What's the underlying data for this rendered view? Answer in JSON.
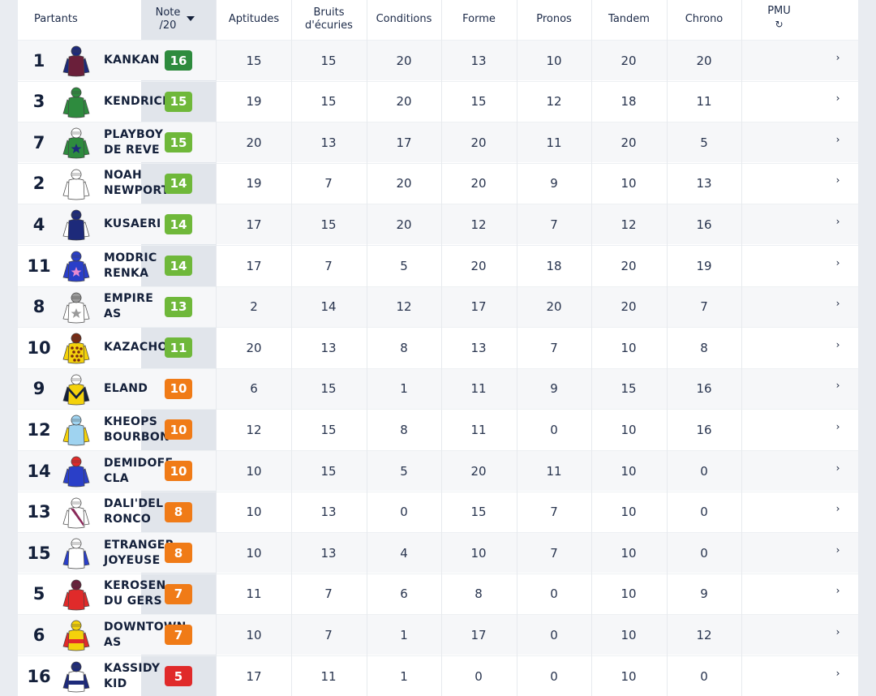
{
  "header": {
    "partants": "Partants",
    "note_line1": "Note",
    "note_line2": "/20",
    "aptitudes": "Aptitudes",
    "bruits_line1": "Bruits",
    "bruits_line2": "d'écuries",
    "conditions": "Conditions",
    "forme": "Forme",
    "pronos": "Pronos",
    "tandem": "Tandem",
    "chrono": "Chrono",
    "pmu": "PMU",
    "refresh_icon": "↻",
    "sort_icon": "caret-down-icon"
  },
  "colors": {
    "dark_green": "#2e8b3e",
    "green": "#6fb83a",
    "orange": "#f07b17",
    "red": "#e02a2a"
  },
  "rows": [
    {
      "num": "1",
      "name1": "KANKAN",
      "name2": "",
      "note": "16",
      "note_level": "dark_green",
      "aptitudes": "15",
      "bruits": "15",
      "conditions": "20",
      "forme": "13",
      "pronos": "10",
      "tandem": "20",
      "chrono": "20",
      "silk": {
        "body": "#6a1f3a",
        "cap": "#1d2a7a",
        "sleeves": "#1d2a7a",
        "pattern": "plain",
        "accent": "#6a1f3a"
      }
    },
    {
      "num": "3",
      "name1": "KENDRICK",
      "name2": "",
      "note": "15",
      "note_level": "green",
      "aptitudes": "19",
      "bruits": "15",
      "conditions": "20",
      "forme": "15",
      "pronos": "12",
      "tandem": "18",
      "chrono": "11",
      "silk": {
        "body": "#2e8b3e",
        "cap": "#2e8b3e",
        "sleeves": "#2e8b3e",
        "pattern": "plain",
        "accent": "#2e8b3e"
      }
    },
    {
      "num": "7",
      "name1": "PLAYBOY",
      "name2": "DE REVE",
      "note": "15",
      "note_level": "green",
      "aptitudes": "20",
      "bruits": "13",
      "conditions": "17",
      "forme": "20",
      "pronos": "11",
      "tandem": "20",
      "chrono": "5",
      "silk": {
        "body": "#2e8b3e",
        "cap": "#ffffff",
        "sleeves": "#2e8b3e",
        "pattern": "star",
        "accent": "#1d2a7a"
      }
    },
    {
      "num": "2",
      "name1": "NOAH",
      "name2": "NEWPORT",
      "note": "14",
      "note_level": "green",
      "aptitudes": "19",
      "bruits": "7",
      "conditions": "20",
      "forme": "20",
      "pronos": "9",
      "tandem": "10",
      "chrono": "13",
      "silk": {
        "body": "#ffffff",
        "cap": "#ffffff",
        "sleeves": "#ffffff",
        "pattern": "plain",
        "accent": "#ffffff"
      }
    },
    {
      "num": "4",
      "name1": "KUSAERI",
      "name2": "",
      "note": "14",
      "note_level": "green",
      "aptitudes": "17",
      "bruits": "15",
      "conditions": "20",
      "forme": "12",
      "pronos": "7",
      "tandem": "12",
      "chrono": "16",
      "silk": {
        "body": "#1d2a7a",
        "cap": "#1d2a7a",
        "sleeves": "#ffffff",
        "pattern": "plain",
        "accent": "#1d2a7a"
      }
    },
    {
      "num": "11",
      "name1": "MODRIC",
      "name2": "RENKA",
      "note": "14",
      "note_level": "green",
      "aptitudes": "17",
      "bruits": "7",
      "conditions": "5",
      "forme": "20",
      "pronos": "18",
      "tandem": "20",
      "chrono": "19",
      "silk": {
        "body": "#2a3fc8",
        "cap": "#2a3fc8",
        "sleeves": "#2a3fc8",
        "pattern": "star",
        "accent": "#e88ad0"
      }
    },
    {
      "num": "8",
      "name1": "EMPIRE",
      "name2": "AS",
      "note": "13",
      "note_level": "green",
      "aptitudes": "2",
      "bruits": "14",
      "conditions": "12",
      "forme": "17",
      "pronos": "20",
      "tandem": "20",
      "chrono": "7",
      "silk": {
        "body": "#ffffff",
        "cap": "#9a9a9a",
        "sleeves": "#ffffff",
        "pattern": "star",
        "accent": "#9a9a9a"
      }
    },
    {
      "num": "10",
      "name1": "KAZACHOK",
      "name2": "",
      "note": "11",
      "note_level": "green",
      "aptitudes": "20",
      "bruits": "13",
      "conditions": "8",
      "forme": "13",
      "pronos": "7",
      "tandem": "10",
      "chrono": "8",
      "silk": {
        "body": "#f4d20b",
        "cap": "#7a2a12",
        "sleeves": "#f4d20b",
        "pattern": "dots",
        "accent": "#7a2a12"
      }
    },
    {
      "num": "9",
      "name1": "ELAND",
      "name2": "",
      "note": "10",
      "note_level": "orange",
      "aptitudes": "6",
      "bruits": "15",
      "conditions": "1",
      "forme": "11",
      "pronos": "9",
      "tandem": "15",
      "chrono": "16",
      "silk": {
        "body": "#f4d20b",
        "cap": "#ffffff",
        "sleeves": "#14203a",
        "pattern": "chevron",
        "accent": "#14203a"
      }
    },
    {
      "num": "12",
      "name1": "KHEOPS",
      "name2": "BOURBON",
      "note": "10",
      "note_level": "orange",
      "aptitudes": "12",
      "bruits": "15",
      "conditions": "8",
      "forme": "11",
      "pronos": "0",
      "tandem": "10",
      "chrono": "16",
      "silk": {
        "body": "#9fd3f0",
        "cap": "#9fd3f0",
        "sleeves": "#f4d20b",
        "pattern": "plain",
        "accent": "#9fd3f0"
      }
    },
    {
      "num": "14",
      "name1": "DEMIDOFF",
      "name2": "CLA",
      "note": "10",
      "note_level": "orange",
      "aptitudes": "10",
      "bruits": "15",
      "conditions": "5",
      "forme": "20",
      "pronos": "11",
      "tandem": "10",
      "chrono": "0",
      "silk": {
        "body": "#2a3fc8",
        "cap": "#e02a2a",
        "sleeves": "#2a3fc8",
        "pattern": "plain",
        "accent": "#e02a2a"
      }
    },
    {
      "num": "13",
      "name1": "DALI'DEL",
      "name2": "RONCO",
      "note": "8",
      "note_level": "orange",
      "aptitudes": "10",
      "bruits": "13",
      "conditions": "0",
      "forme": "15",
      "pronos": "7",
      "tandem": "10",
      "chrono": "0",
      "silk": {
        "body": "#ffffff",
        "cap": "#ffffff",
        "sleeves": "#ffffff",
        "pattern": "sash",
        "accent": "#8a2a5a"
      }
    },
    {
      "num": "15",
      "name1": "ETRANGER",
      "name2": "JOYEUSE",
      "note": "8",
      "note_level": "orange",
      "aptitudes": "10",
      "bruits": "13",
      "conditions": "4",
      "forme": "10",
      "pronos": "7",
      "tandem": "10",
      "chrono": "0",
      "silk": {
        "body": "#ffffff",
        "cap": "#ffffff",
        "sleeves": "#2a3fc8",
        "pattern": "plain",
        "accent": "#2a3fc8"
      }
    },
    {
      "num": "5",
      "name1": "KEROSEN",
      "name2": "DU GERS",
      "note": "7",
      "note_level": "orange",
      "aptitudes": "11",
      "bruits": "7",
      "conditions": "6",
      "forme": "8",
      "pronos": "0",
      "tandem": "10",
      "chrono": "9",
      "silk": {
        "body": "#e02a2a",
        "cap": "#6a1f3a",
        "sleeves": "#e02a2a",
        "pattern": "plain",
        "accent": "#e02a2a"
      }
    },
    {
      "num": "6",
      "name1": "DOWNTOWN",
      "name2": "AS",
      "note": "7",
      "note_level": "orange",
      "aptitudes": "10",
      "bruits": "7",
      "conditions": "1",
      "forme": "17",
      "pronos": "0",
      "tandem": "10",
      "chrono": "12",
      "silk": {
        "body": "#f4d20b",
        "cap": "#f4d20b",
        "sleeves": "#e02a2a",
        "pattern": "band",
        "accent": "#e02a2a"
      }
    },
    {
      "num": "16",
      "name1": "KASSIDY",
      "name2": "KID",
      "note": "5",
      "note_level": "red",
      "aptitudes": "17",
      "bruits": "11",
      "conditions": "1",
      "forme": "0",
      "pronos": "0",
      "tandem": "10",
      "chrono": "0",
      "silk": {
        "body": "#ffffff",
        "cap": "#1d2a7a",
        "sleeves": "#1d2a7a",
        "pattern": "band",
        "accent": "#1d2a7a"
      }
    }
  ]
}
